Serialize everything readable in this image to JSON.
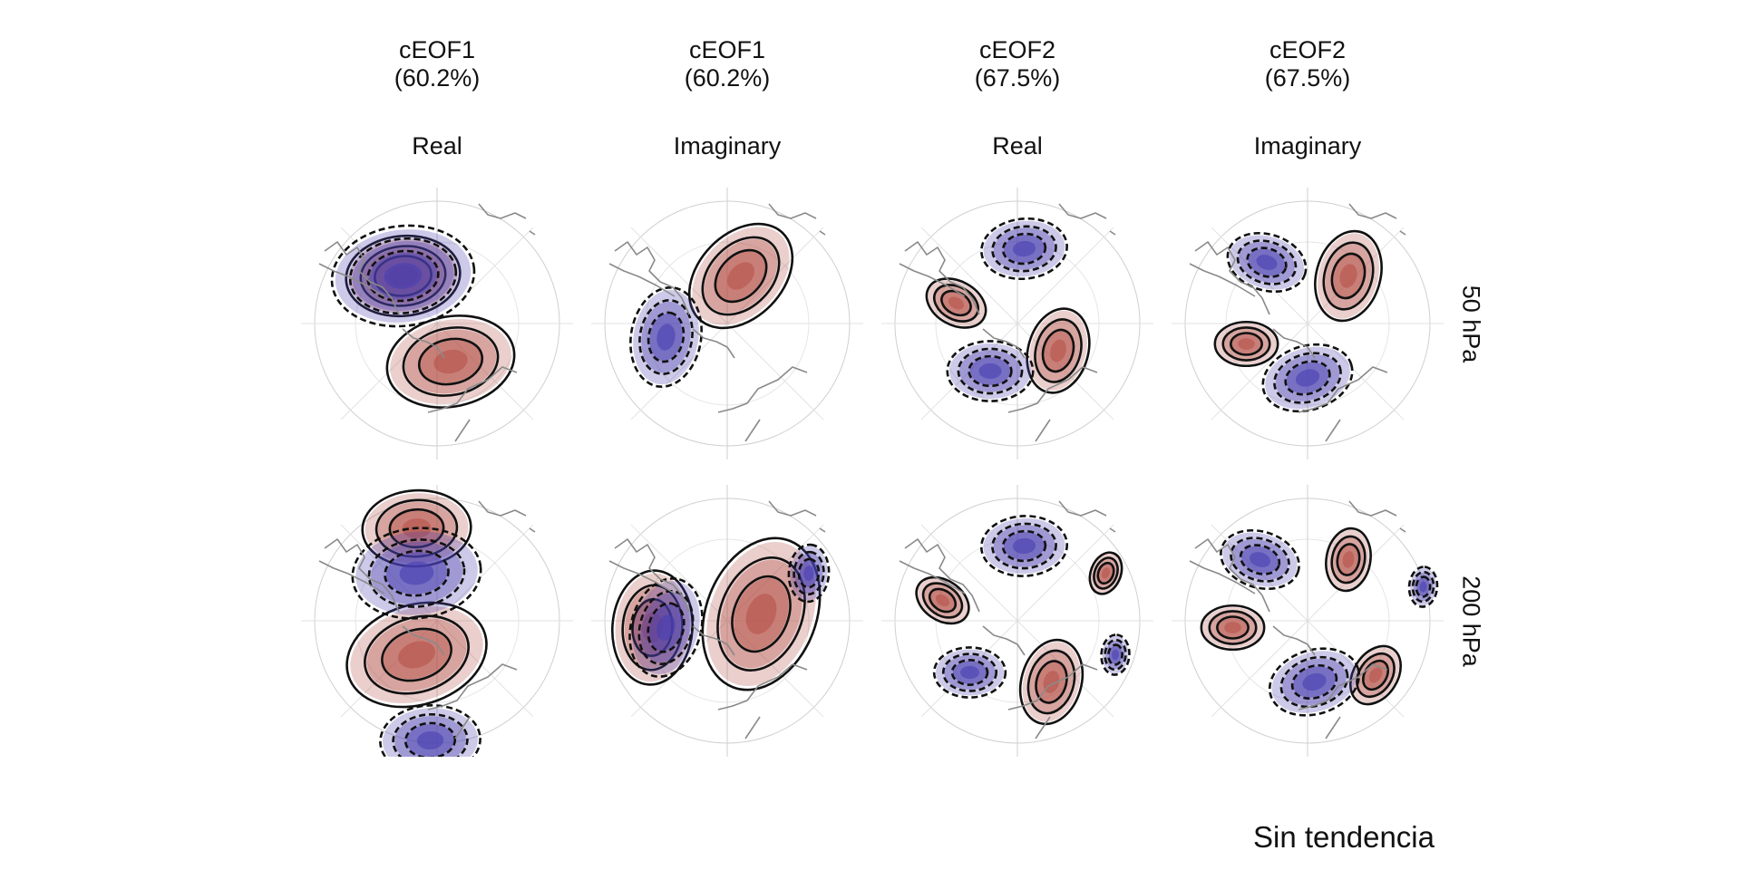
{
  "columns": [
    {
      "title": "cEOF1",
      "variance": "(60.2%)",
      "part": "Real"
    },
    {
      "title": "cEOF1",
      "variance": "(60.2%)",
      "part": "Imaginary"
    },
    {
      "title": "cEOF2",
      "variance": "(67.5%)",
      "part": "Real"
    },
    {
      "title": "cEOF2",
      "variance": "(67.5%)",
      "part": "Imaginary"
    }
  ],
  "rows": [
    {
      "label": "50 hPa"
    },
    {
      "label": "200 hPa"
    }
  ],
  "caption": "Sin tendencia",
  "colors": {
    "positive_fill": "#b5524a",
    "negative_fill": "#4a3fb0",
    "contour": "#111111",
    "coastline": "#8a8a8a",
    "grid": "#d0d0d0"
  },
  "panels": [
    [
      {
        "pos": [
          [
            0.1,
            -0.28,
            0.45,
            0.2
          ],
          [
            -0.25,
            0.35,
            0.4,
            0.1
          ]
        ],
        "neg": [
          [
            -0.25,
            0.35,
            0.5,
            0.12
          ]
        ]
      },
      {
        "pos": [
          [
            0.1,
            0.35,
            0.42,
            0.8
          ]
        ],
        "neg": [
          [
            -0.45,
            -0.1,
            0.35,
            1.4
          ]
        ]
      },
      {
        "pos": [
          [
            -0.45,
            0.15,
            0.22,
            -0.5
          ],
          [
            0.3,
            -0.2,
            0.3,
            1.3
          ]
        ],
        "neg": [
          [
            0.05,
            0.55,
            0.3,
            0.1
          ],
          [
            -0.2,
            -0.35,
            0.3,
            0.0
          ]
        ]
      },
      {
        "pos": [
          [
            -0.45,
            -0.15,
            0.22,
            0.0
          ],
          [
            0.3,
            0.35,
            0.32,
            1.3
          ]
        ],
        "neg": [
          [
            -0.3,
            0.45,
            0.28,
            -0.3
          ],
          [
            0.0,
            -0.4,
            0.32,
            0.3
          ]
        ]
      }
    ],
    [
      {
        "pos": [
          [
            -0.15,
            -0.25,
            0.5,
            0.3
          ],
          [
            -0.15,
            0.68,
            0.38,
            0.05
          ]
        ],
        "neg": [
          [
            -0.15,
            0.35,
            0.45,
            0.1
          ],
          [
            -0.05,
            -0.88,
            0.35,
            0.05
          ]
        ]
      },
      {
        "pos": [
          [
            0.25,
            0.05,
            0.55,
            1.2
          ],
          [
            -0.55,
            -0.05,
            0.4,
            1.5
          ]
        ],
        "neg": [
          [
            -0.45,
            -0.05,
            0.35,
            1.3
          ],
          [
            0.6,
            0.35,
            0.2,
            1.5
          ]
        ]
      },
      {
        "pos": [
          [
            -0.55,
            0.15,
            0.2,
            -0.6
          ],
          [
            0.25,
            -0.45,
            0.3,
            1.3
          ],
          [
            0.65,
            0.35,
            0.15,
            1.2
          ]
        ],
        "neg": [
          [
            0.05,
            0.55,
            0.3,
            0.05
          ],
          [
            -0.35,
            -0.38,
            0.25,
            0.0
          ],
          [
            0.72,
            -0.25,
            0.14,
            1.5
          ]
        ]
      },
      {
        "pos": [
          [
            -0.55,
            -0.05,
            0.22,
            0.0
          ],
          [
            0.3,
            0.45,
            0.22,
            1.4
          ],
          [
            0.5,
            -0.4,
            0.22,
            1.0
          ]
        ],
        "neg": [
          [
            -0.35,
            0.45,
            0.28,
            -0.3
          ],
          [
            0.05,
            -0.45,
            0.32,
            0.3
          ],
          [
            0.85,
            0.25,
            0.14,
            1.5
          ]
        ]
      }
    ]
  ]
}
